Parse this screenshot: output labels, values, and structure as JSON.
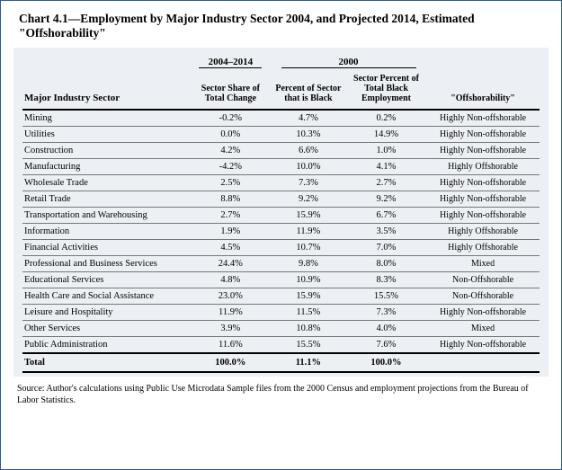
{
  "title": "Chart 4.1—Employment by Major Industry Sector 2004, and Projected 2014, Estimated \"Offshorability\"",
  "header": {
    "year_span": "2004–2014",
    "year_point": "2000",
    "col_sector": "Major Industry Sector",
    "col_share": "Sector Share of Total Change",
    "col_pct_black": "Percent of Sector that is Black",
    "col_pct_total": "Sector Percent of Total Black Employment",
    "col_off": "\"Offshorability\""
  },
  "rows": [
    {
      "sector": "Mining",
      "share": "-0.2%",
      "pct_black": "4.7%",
      "pct_total": "0.2%",
      "off": "Highly Non-offshorable"
    },
    {
      "sector": "Utilities",
      "share": "0.0%",
      "pct_black": "10.3%",
      "pct_total": "14.9%",
      "off": "Highly Non-offshorable"
    },
    {
      "sector": "Construction",
      "share": "4.2%",
      "pct_black": "6.6%",
      "pct_total": "1.0%",
      "off": "Highly Non-offshorable"
    },
    {
      "sector": "Manufacturing",
      "share": "-4.2%",
      "pct_black": "10.0%",
      "pct_total": "4.1%",
      "off": "Highly Offshorable"
    },
    {
      "sector": "Wholesale Trade",
      "share": "2.5%",
      "pct_black": "7.3%",
      "pct_total": "2.7%",
      "off": "Highly Non-offshorable"
    },
    {
      "sector": "Retail Trade",
      "share": "8.8%",
      "pct_black": "9.2%",
      "pct_total": "9.2%",
      "off": "Highly Non-offshorable"
    },
    {
      "sector": "Transportation and Warehousing",
      "share": "2.7%",
      "pct_black": "15.9%",
      "pct_total": "6.7%",
      "off": "Highly Non-offshorable"
    },
    {
      "sector": "Information",
      "share": "1.9%",
      "pct_black": "11.9%",
      "pct_total": "3.5%",
      "off": "Highly Offshorable"
    },
    {
      "sector": "Financial Activities",
      "share": "4.5%",
      "pct_black": "10.7%",
      "pct_total": "7.0%",
      "off": "Highly Offshorable"
    },
    {
      "sector": "Professional and Business Services",
      "share": "24.4%",
      "pct_black": "9.8%",
      "pct_total": "8.0%",
      "off": "Mixed"
    },
    {
      "sector": "Educational Services",
      "share": "4.8%",
      "pct_black": "10.9%",
      "pct_total": "8.3%",
      "off": "Non-Offshorable"
    },
    {
      "sector": "Health Care and Social Assistance",
      "share": "23.0%",
      "pct_black": "15.9%",
      "pct_total": "15.5%",
      "off": "Non-Offshorable"
    },
    {
      "sector": "Leisure and Hospitality",
      "share": "11.9%",
      "pct_black": "11.5%",
      "pct_total": "7.3%",
      "off": "Highly Non-offshorable"
    },
    {
      "sector": "Other Services",
      "share": "3.9%",
      "pct_black": "10.8%",
      "pct_total": "4.0%",
      "off": "Mixed"
    },
    {
      "sector": "Public Administration",
      "share": "11.6%",
      "pct_black": "15.5%",
      "pct_total": "7.6%",
      "off": "Highly Non-offshorable"
    }
  ],
  "total": {
    "sector": "Total",
    "share": "100.0%",
    "pct_black": "11.1%",
    "pct_total": "100.0%",
    "off": ""
  },
  "source": "Source: Author's calculations using Public Use Microdata Sample files from the 2000 Census and employment projections from the Bureau of Labor Statistics.",
  "style": {
    "frame_border": "#2a5a9a",
    "table_bg": "#ecf0f4",
    "rule_color": "#000000",
    "row_rule": "#777777",
    "title_fontsize": 13.5,
    "body_fontsize": 10.5,
    "header_fontsize": 10,
    "source_fontsize": 10
  }
}
